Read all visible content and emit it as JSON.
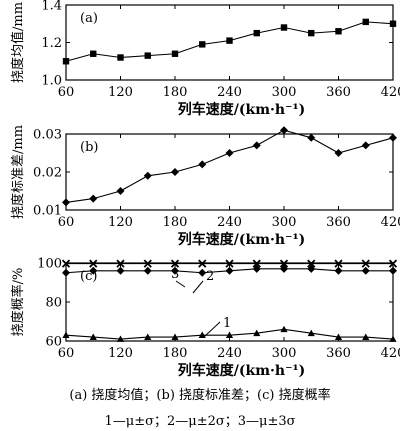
{
  "chart_data": [
    {
      "type": "line",
      "panel_label": "(a)",
      "ylabel": "挠度均值/mm",
      "xlabel": "列车速度/(km·h⁻¹)",
      "x": [
        60,
        90,
        120,
        150,
        180,
        210,
        240,
        270,
        300,
        330,
        360,
        390,
        420
      ],
      "xticks": [
        "60",
        "120",
        "180",
        "240",
        "300",
        "360",
        "420"
      ],
      "ylim": [
        1.0,
        1.4
      ],
      "yticks": [
        "1.0",
        "1.2",
        "1.4"
      ],
      "series": [
        {
          "marker": "square",
          "values": [
            1.1,
            1.14,
            1.12,
            1.13,
            1.14,
            1.19,
            1.21,
            1.25,
            1.28,
            1.25,
            1.26,
            1.31,
            1.3
          ]
        }
      ]
    },
    {
      "type": "line",
      "panel_label": "(b)",
      "ylabel": "挠度标准差/mm",
      "xlabel": "列车速度/(km·h⁻¹)",
      "x": [
        60,
        90,
        120,
        150,
        180,
        210,
        240,
        270,
        300,
        330,
        360,
        390,
        420
      ],
      "xticks": [
        "60",
        "120",
        "180",
        "240",
        "300",
        "360",
        "420"
      ],
      "ylim": [
        0.01,
        0.03
      ],
      "yticks": [
        "0.01",
        "0.02",
        "0.03"
      ],
      "series": [
        {
          "marker": "diamond",
          "values": [
            0.012,
            0.013,
            0.015,
            0.019,
            0.02,
            0.022,
            0.025,
            0.027,
            0.031,
            0.029,
            0.025,
            0.027,
            0.029
          ]
        }
      ]
    },
    {
      "type": "line",
      "panel_label": "(c)",
      "ylabel": "挠度概率/%",
      "xlabel": "列车速度/(km·h⁻¹)",
      "x": [
        60,
        90,
        120,
        150,
        180,
        210,
        240,
        270,
        300,
        330,
        360,
        390,
        420
      ],
      "xticks": [
        "60",
        "120",
        "180",
        "240",
        "300",
        "360",
        "420"
      ],
      "ylim": [
        60,
        100
      ],
      "yticks": [
        "60",
        "80",
        "100"
      ],
      "series": [
        {
          "label": "1",
          "marker": "triangle",
          "values": [
            63,
            62,
            61,
            62,
            62,
            63,
            63,
            64,
            66,
            64,
            62,
            62,
            61
          ]
        },
        {
          "label": "2",
          "marker": "diamond",
          "values": [
            95,
            96,
            96,
            96,
            96,
            95,
            96,
            97,
            97,
            97,
            96,
            96,
            96
          ]
        },
        {
          "label": "3",
          "marker": "x",
          "values": [
            99.7,
            99.7,
            99.7,
            99.7,
            99.7,
            99.7,
            99.7,
            99.7,
            99.7,
            99.7,
            99.7,
            99.7,
            99.7
          ]
        }
      ]
    }
  ],
  "caption": {
    "line1": "(a) 挠度均值；(b) 挠度标准差；(c) 挠度概率",
    "line2": "1—μ±σ；2—μ±2σ；3—μ±3σ"
  }
}
